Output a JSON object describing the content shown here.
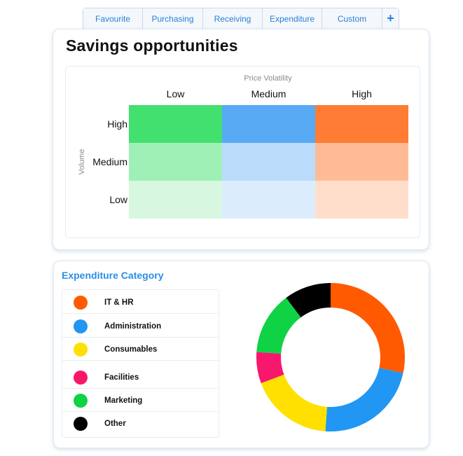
{
  "tabs": [
    {
      "label": "Favourite"
    },
    {
      "label": "Purchasing"
    },
    {
      "label": "Receiving"
    },
    {
      "label": "Expenditure"
    },
    {
      "label": "Custom"
    },
    {
      "label": "+"
    }
  ],
  "savings": {
    "title": "Savings opportunities",
    "x_axis_label": "Price Volatility",
    "y_axis_label": "Volume",
    "columns": [
      "Low",
      "Medium",
      "High"
    ],
    "rows": [
      "High",
      "Medium",
      "Low"
    ],
    "cell_colors": [
      [
        "#42e06f",
        "#58aaf5",
        "#fe7c33"
      ],
      [
        "#9ff0b6",
        "#badcfa",
        "#ffbb95"
      ],
      [
        "#d8f7e1",
        "#dbedfd",
        "#ffdecb"
      ]
    ]
  },
  "expenditure": {
    "title": "Expenditure Category",
    "categories": [
      {
        "label": "IT & HR",
        "color": "#ff5a00",
        "icon": "dot-icon"
      },
      {
        "label": "Administration",
        "color": "#2196f3",
        "icon": "dot-icon"
      },
      {
        "label": "Consumables",
        "color": "#ffe000",
        "icon": "dot-icon"
      },
      {
        "label": "Facilities",
        "color": "#f7186e",
        "icon": "dot-icon"
      },
      {
        "label": "Marketing",
        "color": "#0fd344",
        "icon": "dot-icon"
      },
      {
        "label": "Other",
        "color": "#000000",
        "icon": "dot-icon"
      }
    ]
  },
  "chart_data": {
    "type": "pie",
    "subtype": "donut",
    "categories": [
      "IT & HR",
      "Administration",
      "Consumables",
      "Facilities",
      "Marketing",
      "Other"
    ],
    "values": [
      25,
      20,
      16,
      6,
      12,
      9
    ],
    "colors": [
      "#ff5a00",
      "#2196f3",
      "#ffe000",
      "#f7186e",
      "#0fd344",
      "#000000"
    ]
  }
}
